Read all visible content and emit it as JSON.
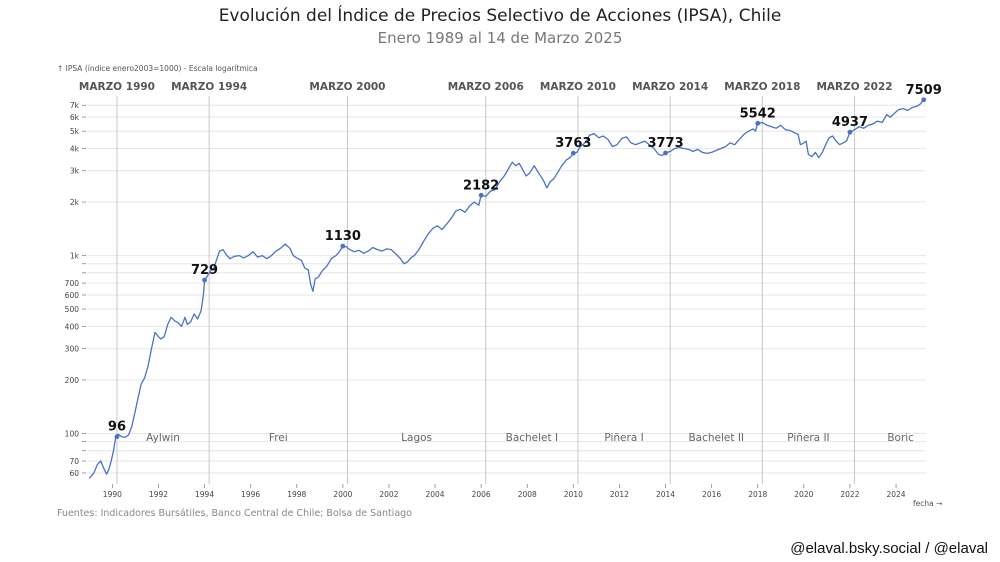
{
  "chart_data": {
    "type": "line",
    "title": "Evolución del Índice de Precios Selectivo de Acciones (IPSA), Chile",
    "subtitle": "Enero 1989 al 14 de Marzo 2025",
    "ylabel": "↑ IPSA (índice enero2003=1000) - Escala logarítmica",
    "xlabel": "fecha →",
    "yscale": "log",
    "xlim": [
      1988.9,
      2025.3
    ],
    "ylim": [
      52,
      8200
    ],
    "x_ticks": [
      1990,
      1992,
      1994,
      1996,
      1998,
      2000,
      2002,
      2004,
      2006,
      2008,
      2010,
      2012,
      2014,
      2016,
      2018,
      2020,
      2022,
      2024
    ],
    "y_ticks": [
      {
        "v": 60,
        "label": "60"
      },
      {
        "v": 70,
        "label": "70"
      },
      {
        "v": 80,
        "label": ""
      },
      {
        "v": 90,
        "label": ""
      },
      {
        "v": 100,
        "label": "100"
      },
      {
        "v": 200,
        "label": "200"
      },
      {
        "v": 300,
        "label": "300"
      },
      {
        "v": 400,
        "label": "400"
      },
      {
        "v": 500,
        "label": "500"
      },
      {
        "v": 600,
        "label": "600"
      },
      {
        "v": 700,
        "label": "700"
      },
      {
        "v": 800,
        "label": ""
      },
      {
        "v": 900,
        "label": ""
      },
      {
        "v": 1000,
        "label": "1k"
      },
      {
        "v": 2000,
        "label": "2k"
      },
      {
        "v": 3000,
        "label": "3k"
      },
      {
        "v": 4000,
        "label": "4k"
      },
      {
        "v": 5000,
        "label": "5k"
      },
      {
        "v": 6000,
        "label": "6k"
      },
      {
        "v": 7000,
        "label": "7k"
      }
    ],
    "series": [
      {
        "name": "IPSA",
        "color": "#4a72c8",
        "points": [
          [
            1989.0,
            56
          ],
          [
            1989.2,
            60
          ],
          [
            1989.35,
            67
          ],
          [
            1989.5,
            70
          ],
          [
            1989.6,
            65
          ],
          [
            1989.75,
            59
          ],
          [
            1989.85,
            63
          ],
          [
            1989.95,
            70
          ],
          [
            1990.05,
            80
          ],
          [
            1990.15,
            96
          ],
          [
            1990.25,
            99
          ],
          [
            1990.4,
            96
          ],
          [
            1990.55,
            95
          ],
          [
            1990.7,
            98
          ],
          [
            1990.85,
            110
          ],
          [
            1991.0,
            135
          ],
          [
            1991.1,
            155
          ],
          [
            1991.25,
            190
          ],
          [
            1991.4,
            205
          ],
          [
            1991.55,
            240
          ],
          [
            1991.7,
            300
          ],
          [
            1991.85,
            370
          ],
          [
            1992.0,
            350
          ],
          [
            1992.1,
            340
          ],
          [
            1992.25,
            350
          ],
          [
            1992.4,
            410
          ],
          [
            1992.55,
            450
          ],
          [
            1992.7,
            430
          ],
          [
            1992.85,
            420
          ],
          [
            1993.0,
            400
          ],
          [
            1993.15,
            450
          ],
          [
            1993.25,
            410
          ],
          [
            1993.4,
            425
          ],
          [
            1993.55,
            470
          ],
          [
            1993.7,
            440
          ],
          [
            1993.85,
            490
          ],
          [
            1993.95,
            600
          ],
          [
            1994.0,
            729
          ],
          [
            1994.1,
            760
          ],
          [
            1994.25,
            820
          ],
          [
            1994.4,
            850
          ],
          [
            1994.55,
            970
          ],
          [
            1994.65,
            1060
          ],
          [
            1994.8,
            1080
          ],
          [
            1994.95,
            1010
          ],
          [
            1995.1,
            960
          ],
          [
            1995.3,
            990
          ],
          [
            1995.5,
            1000
          ],
          [
            1995.7,
            970
          ],
          [
            1995.9,
            1000
          ],
          [
            1996.1,
            1050
          ],
          [
            1996.3,
            980
          ],
          [
            1996.5,
            1000
          ],
          [
            1996.7,
            960
          ],
          [
            1996.9,
            1000
          ],
          [
            1997.1,
            1060
          ],
          [
            1997.3,
            1100
          ],
          [
            1997.5,
            1160
          ],
          [
            1997.7,
            1100
          ],
          [
            1997.85,
            1000
          ],
          [
            1998.0,
            970
          ],
          [
            1998.2,
            940
          ],
          [
            1998.35,
            850
          ],
          [
            1998.5,
            830
          ],
          [
            1998.6,
            690
          ],
          [
            1998.7,
            630
          ],
          [
            1998.8,
            740
          ],
          [
            1998.95,
            760
          ],
          [
            1999.1,
            820
          ],
          [
            1999.3,
            870
          ],
          [
            1999.5,
            960
          ],
          [
            1999.7,
            1000
          ],
          [
            1999.85,
            1050
          ],
          [
            2000.0,
            1130
          ],
          [
            2000.15,
            1120
          ],
          [
            2000.3,
            1080
          ],
          [
            2000.5,
            1050
          ],
          [
            2000.7,
            1070
          ],
          [
            2000.9,
            1030
          ],
          [
            2001.1,
            1060
          ],
          [
            2001.3,
            1110
          ],
          [
            2001.5,
            1080
          ],
          [
            2001.7,
            1060
          ],
          [
            2001.9,
            1090
          ],
          [
            2002.1,
            1080
          ],
          [
            2002.3,
            1020
          ],
          [
            2002.5,
            960
          ],
          [
            2002.65,
            900
          ],
          [
            2002.8,
            920
          ],
          [
            2002.95,
            970
          ],
          [
            2003.1,
            1000
          ],
          [
            2003.3,
            1080
          ],
          [
            2003.5,
            1200
          ],
          [
            2003.7,
            1320
          ],
          [
            2003.9,
            1420
          ],
          [
            2004.1,
            1470
          ],
          [
            2004.3,
            1400
          ],
          [
            2004.5,
            1500
          ],
          [
            2004.7,
            1620
          ],
          [
            2004.9,
            1780
          ],
          [
            2005.1,
            1820
          ],
          [
            2005.3,
            1750
          ],
          [
            2005.5,
            1900
          ],
          [
            2005.7,
            2000
          ],
          [
            2005.9,
            1920
          ],
          [
            2006.0,
            2182
          ],
          [
            2006.2,
            2150
          ],
          [
            2006.4,
            2300
          ],
          [
            2006.6,
            2350
          ],
          [
            2006.8,
            2600
          ],
          [
            2007.0,
            2800
          ],
          [
            2007.2,
            3100
          ],
          [
            2007.35,
            3350
          ],
          [
            2007.5,
            3200
          ],
          [
            2007.65,
            3300
          ],
          [
            2007.8,
            3050
          ],
          [
            2007.95,
            2800
          ],
          [
            2008.1,
            2900
          ],
          [
            2008.3,
            3200
          ],
          [
            2008.5,
            2900
          ],
          [
            2008.7,
            2650
          ],
          [
            2008.85,
            2400
          ],
          [
            2009.0,
            2600
          ],
          [
            2009.15,
            2700
          ],
          [
            2009.3,
            2900
          ],
          [
            2009.5,
            3200
          ],
          [
            2009.7,
            3450
          ],
          [
            2009.85,
            3550
          ],
          [
            2010.0,
            3763
          ],
          [
            2010.15,
            3800
          ],
          [
            2010.3,
            4100
          ],
          [
            2010.5,
            4300
          ],
          [
            2010.7,
            4750
          ],
          [
            2010.9,
            4850
          ],
          [
            2011.1,
            4600
          ],
          [
            2011.3,
            4700
          ],
          [
            2011.5,
            4500
          ],
          [
            2011.7,
            4100
          ],
          [
            2011.9,
            4200
          ],
          [
            2012.1,
            4550
          ],
          [
            2012.3,
            4650
          ],
          [
            2012.5,
            4300
          ],
          [
            2012.7,
            4200
          ],
          [
            2012.9,
            4300
          ],
          [
            2013.1,
            4400
          ],
          [
            2013.3,
            4200
          ],
          [
            2013.5,
            4000
          ],
          [
            2013.7,
            3700
          ],
          [
            2013.85,
            3650
          ],
          [
            2014.0,
            3773
          ],
          [
            2014.2,
            3850
          ],
          [
            2014.4,
            4000
          ],
          [
            2014.6,
            4050
          ],
          [
            2014.8,
            4000
          ],
          [
            2015.0,
            3950
          ],
          [
            2015.2,
            3850
          ],
          [
            2015.4,
            3950
          ],
          [
            2015.6,
            3800
          ],
          [
            2015.8,
            3750
          ],
          [
            2016.0,
            3800
          ],
          [
            2016.2,
            3900
          ],
          [
            2016.4,
            4000
          ],
          [
            2016.6,
            4100
          ],
          [
            2016.8,
            4300
          ],
          [
            2017.0,
            4200
          ],
          [
            2017.2,
            4500
          ],
          [
            2017.4,
            4800
          ],
          [
            2017.6,
            5000
          ],
          [
            2017.8,
            5150
          ],
          [
            2017.9,
            5000
          ],
          [
            2018.0,
            5542
          ],
          [
            2018.2,
            5600
          ],
          [
            2018.4,
            5400
          ],
          [
            2018.6,
            5300
          ],
          [
            2018.8,
            5200
          ],
          [
            2019.0,
            5400
          ],
          [
            2019.2,
            5100
          ],
          [
            2019.4,
            5050
          ],
          [
            2019.6,
            4900
          ],
          [
            2019.75,
            4800
          ],
          [
            2019.85,
            4200
          ],
          [
            2020.0,
            4300
          ],
          [
            2020.1,
            4400
          ],
          [
            2020.2,
            3700
          ],
          [
            2020.35,
            3600
          ],
          [
            2020.5,
            3800
          ],
          [
            2020.65,
            3550
          ],
          [
            2020.8,
            3800
          ],
          [
            2020.95,
            4200
          ],
          [
            2021.1,
            4600
          ],
          [
            2021.25,
            4700
          ],
          [
            2021.4,
            4400
          ],
          [
            2021.55,
            4200
          ],
          [
            2021.7,
            4300
          ],
          [
            2021.85,
            4400
          ],
          [
            2022.0,
            4937
          ],
          [
            2022.2,
            5100
          ],
          [
            2022.4,
            5300
          ],
          [
            2022.6,
            5200
          ],
          [
            2022.8,
            5400
          ],
          [
            2023.0,
            5500
          ],
          [
            2023.2,
            5700
          ],
          [
            2023.4,
            5600
          ],
          [
            2023.6,
            6200
          ],
          [
            2023.75,
            6000
          ],
          [
            2023.9,
            6250
          ],
          [
            2024.1,
            6600
          ],
          [
            2024.3,
            6700
          ],
          [
            2024.5,
            6550
          ],
          [
            2024.7,
            6800
          ],
          [
            2024.9,
            6900
          ],
          [
            2025.05,
            7100
          ],
          [
            2025.2,
            7509
          ]
        ]
      }
    ],
    "labeled_points": [
      {
        "x": 1990.2,
        "value": 96,
        "label": "96"
      },
      {
        "x": 1994.0,
        "value": 729,
        "label": "729"
      },
      {
        "x": 2000.0,
        "value": 1130,
        "label": "1130"
      },
      {
        "x": 2006.0,
        "value": 2182,
        "label": "2182"
      },
      {
        "x": 2010.0,
        "value": 3763,
        "label": "3763"
      },
      {
        "x": 2014.0,
        "value": 3773,
        "label": "3773"
      },
      {
        "x": 2018.0,
        "value": 5542,
        "label": "5542"
      },
      {
        "x": 2022.0,
        "value": 4937,
        "label": "4937"
      },
      {
        "x": 2025.2,
        "value": 7509,
        "label": "7509"
      }
    ],
    "events": [
      {
        "x": 1990.2,
        "label": "MARZO 1990"
      },
      {
        "x": 1994.2,
        "label": "MARZO 1994"
      },
      {
        "x": 2000.2,
        "label": "MARZO 2000"
      },
      {
        "x": 2006.2,
        "label": "MARZO 2006"
      },
      {
        "x": 2010.2,
        "label": "MARZO 2010"
      },
      {
        "x": 2014.2,
        "label": "MARZO 2014"
      },
      {
        "x": 2018.2,
        "label": "MARZO 2018"
      },
      {
        "x": 2022.2,
        "label": "MARZO 2022"
      }
    ],
    "periods": [
      {
        "x": 1992.2,
        "label": "Aylwin"
      },
      {
        "x": 1997.2,
        "label": "Frei"
      },
      {
        "x": 2003.2,
        "label": "Lagos"
      },
      {
        "x": 2008.2,
        "label": "Bachelet I"
      },
      {
        "x": 2012.2,
        "label": "Piñera I"
      },
      {
        "x": 2016.2,
        "label": "Bachelet II"
      },
      {
        "x": 2020.2,
        "label": "Piñera II"
      },
      {
        "x": 2024.2,
        "label": "Boric"
      }
    ]
  },
  "colors": {
    "line": "#4a72c8",
    "grid": "#e6e6e6",
    "event_line": "#c8c8c8",
    "text": "#222222",
    "muted": "#777777"
  },
  "footer": {
    "source": "Fuentes: Indicadores Bursátiles, Banco Central de Chile; Bolsa de Santiago",
    "handle": "@elaval.bsky.social / @elaval"
  }
}
